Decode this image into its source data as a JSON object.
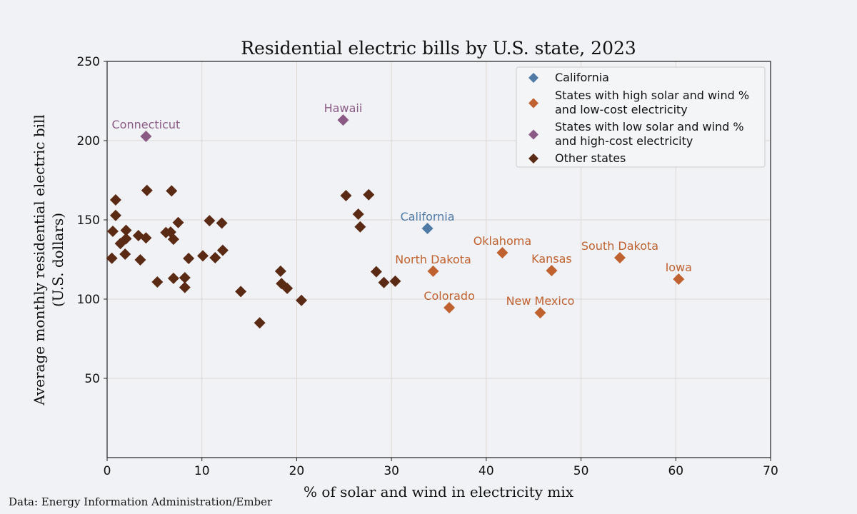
{
  "chart_data": {
    "type": "scatter",
    "title": "Residential electric bills by U.S. state, 2023",
    "xlabel": "% of solar and wind in electricity mix",
    "ylabel": [
      "Average monthly residential electric bill",
      "(U.S. dollars)"
    ],
    "source": "Data: Energy Information Administration/Ember",
    "xlim": [
      0,
      70
    ],
    "ylim": [
      0,
      250
    ],
    "xticks": [
      0,
      10,
      20,
      30,
      40,
      50,
      60,
      70
    ],
    "yticks": [
      50,
      100,
      150,
      200,
      250
    ],
    "grid": true,
    "legend_position": "top-right",
    "marker": "diamond",
    "series": [
      {
        "name": "California",
        "color": "#4f7aa6",
        "points": [
          {
            "x": 33.8,
            "y": 144.6,
            "label": "California"
          }
        ]
      },
      {
        "name": "States with high solar and wind %\nand low-cost electricity",
        "color": "#c0622f",
        "points": [
          {
            "x": 34.4,
            "y": 117.6,
            "label": "North Dakota"
          },
          {
            "x": 36.1,
            "y": 94.6,
            "label": "Colorado"
          },
          {
            "x": 41.7,
            "y": 129.3,
            "label": "Oklahoma"
          },
          {
            "x": 46.9,
            "y": 118.0,
            "label": "Kansas"
          },
          {
            "x": 45.7,
            "y": 91.4,
            "label": "New Mexico"
          },
          {
            "x": 54.1,
            "y": 126.1,
            "label": "South Dakota"
          },
          {
            "x": 60.3,
            "y": 112.6,
            "label": "Iowa"
          }
        ]
      },
      {
        "name": "States with low solar and wind %\nand high-cost electricity",
        "color": "#8a5a85",
        "points": [
          {
            "x": 4.1,
            "y": 202.7,
            "label": "Connecticut"
          },
          {
            "x": 24.9,
            "y": 213.0,
            "label": "Hawaii"
          }
        ]
      },
      {
        "name": "Other states",
        "color": "#5a2a14",
        "points": [
          {
            "x": 0.9,
            "y": 162.6
          },
          {
            "x": 4.2,
            "y": 168.6
          },
          {
            "x": 6.8,
            "y": 168.3
          },
          {
            "x": 0.9,
            "y": 152.8
          },
          {
            "x": 0.6,
            "y": 142.8
          },
          {
            "x": 2.0,
            "y": 143.4
          },
          {
            "x": 3.3,
            "y": 140.1
          },
          {
            "x": 4.1,
            "y": 138.6
          },
          {
            "x": 2.0,
            "y": 138.1
          },
          {
            "x": 1.4,
            "y": 135.1
          },
          {
            "x": 7.5,
            "y": 148.3
          },
          {
            "x": 6.2,
            "y": 142.0
          },
          {
            "x": 6.7,
            "y": 142.3
          },
          {
            "x": 7.0,
            "y": 137.8
          },
          {
            "x": 10.8,
            "y": 149.5
          },
          {
            "x": 12.1,
            "y": 148.0
          },
          {
            "x": 0.5,
            "y": 125.8
          },
          {
            "x": 1.9,
            "y": 128.4
          },
          {
            "x": 3.5,
            "y": 124.8
          },
          {
            "x": 8.6,
            "y": 125.7
          },
          {
            "x": 10.1,
            "y": 127.3
          },
          {
            "x": 11.4,
            "y": 126.1
          },
          {
            "x": 12.2,
            "y": 130.8
          },
          {
            "x": 5.3,
            "y": 110.8
          },
          {
            "x": 7.0,
            "y": 113.1
          },
          {
            "x": 8.2,
            "y": 113.5
          },
          {
            "x": 8.2,
            "y": 107.4
          },
          {
            "x": 14.1,
            "y": 104.8
          },
          {
            "x": 18.3,
            "y": 117.6
          },
          {
            "x": 18.4,
            "y": 109.8
          },
          {
            "x": 19.0,
            "y": 106.8
          },
          {
            "x": 20.5,
            "y": 99.2
          },
          {
            "x": 16.1,
            "y": 85.0
          },
          {
            "x": 25.2,
            "y": 165.3
          },
          {
            "x": 27.6,
            "y": 165.9
          },
          {
            "x": 26.5,
            "y": 153.6
          },
          {
            "x": 26.7,
            "y": 145.6
          },
          {
            "x": 28.4,
            "y": 117.3
          },
          {
            "x": 29.2,
            "y": 110.5
          },
          {
            "x": 30.4,
            "y": 111.3
          }
        ]
      }
    ]
  }
}
